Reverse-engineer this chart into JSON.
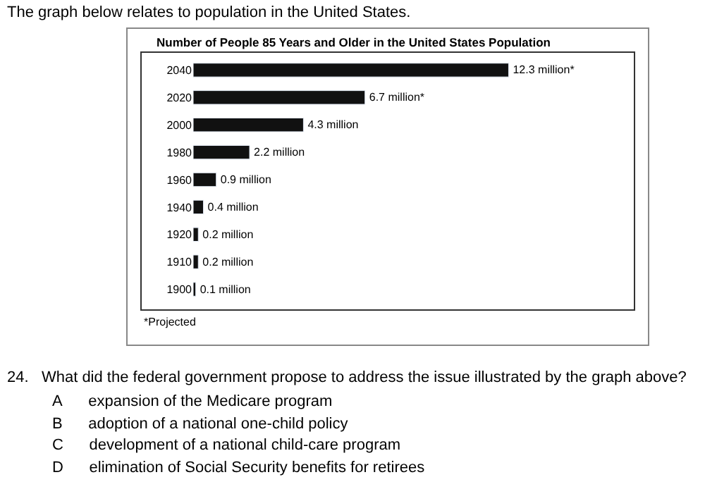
{
  "chart_data": {
    "type": "bar",
    "orientation": "horizontal",
    "title": "Number of People 85 Years and Older in the United States Population",
    "categories": [
      "2040",
      "2020",
      "2000",
      "1980",
      "1960",
      "1940",
      "1920",
      "1910",
      "1900"
    ],
    "values": [
      12.3,
      6.7,
      4.3,
      2.2,
      0.9,
      0.4,
      0.2,
      0.2,
      0.1
    ],
    "value_labels": [
      "12.3 million*",
      "6.7 million*",
      "4.3 million",
      "2.2 million",
      "0.9 million",
      "0.4 million",
      "0.2 million",
      "0.2 million",
      "0.1 million"
    ],
    "color": "#111111",
    "tick_labels": "y",
    "annotations": [
      "The graph below relates to population in the United States.",
      "*Projected",
      "24.   What did the federal government propose to address the issue illustrated by the graph above?",
      "A      expansion of the Medicare program",
      "B      adoption of a national one-child policy",
      "C      development of a national child-care program",
      "D      elimination of Social Security benefits for retirees"
    ]
  }
}
